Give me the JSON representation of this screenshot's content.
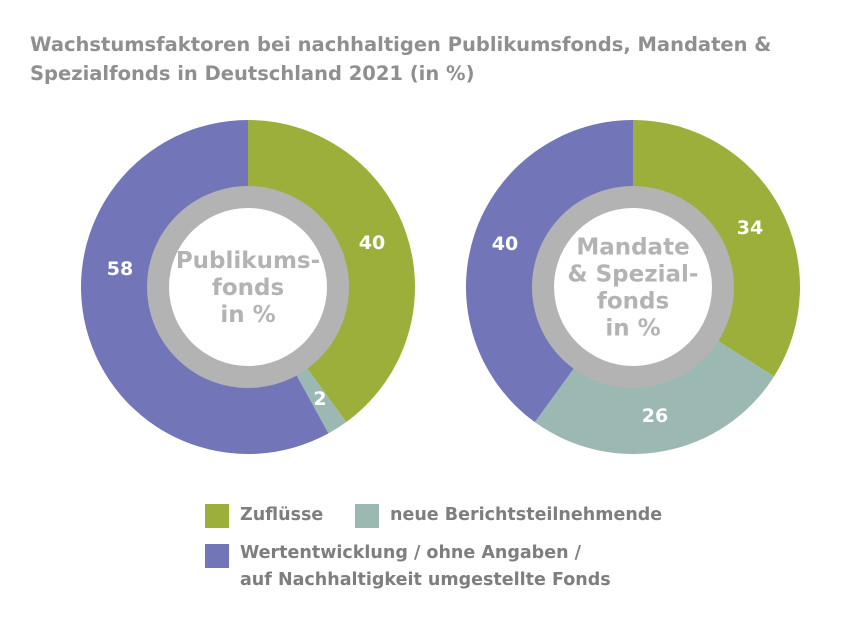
{
  "chart_data": [
    {
      "type": "pie",
      "title": "Wachstumsfaktoren bei nachhaltigen Publikumsfonds, Mandaten & Spezialfonds in Deutschland 2021 (in %)",
      "center_label": [
        "Publikums-",
        "fonds",
        "in %"
      ],
      "categories": [
        "Zuflüsse",
        "neue Berichtsteilnehmende",
        "Wertentwicklung / ohne Angaben / auf Nachhaltigkeit umgestellte Fonds"
      ],
      "values": [
        40,
        2,
        58
      ]
    },
    {
      "type": "pie",
      "center_label": [
        "Mandate",
        "& Spezial-",
        "fonds",
        "in %"
      ],
      "categories": [
        "Zuflüsse",
        "neue Berichtsteilnehmende",
        "Wertentwicklung / ohne Angaben / auf Nachhaltigkeit umgestellte Fonds"
      ],
      "values": [
        34,
        26,
        40
      ]
    }
  ],
  "colors": {
    "Zuflüsse": "#9caf3a",
    "neue Berichtsteilnehmende": "#9bb8b2",
    "Wertentwicklung": "#7275b7",
    "ring": "#b3b3b3",
    "text": "#8f8f8f"
  },
  "legend": {
    "items": [
      "Zuflüsse",
      "neue Berichtsteilnehmende"
    ],
    "item3_line1": "Wertentwicklung / ohne Angaben /",
    "item3_line2": "auf Nachhaltigkeit umgestellte Fonds"
  },
  "title": "Wachstumsfaktoren bei nachhaltigen Publikumsfonds, Mandaten & Spezialfonds in Deutschland 2021 (in %)"
}
